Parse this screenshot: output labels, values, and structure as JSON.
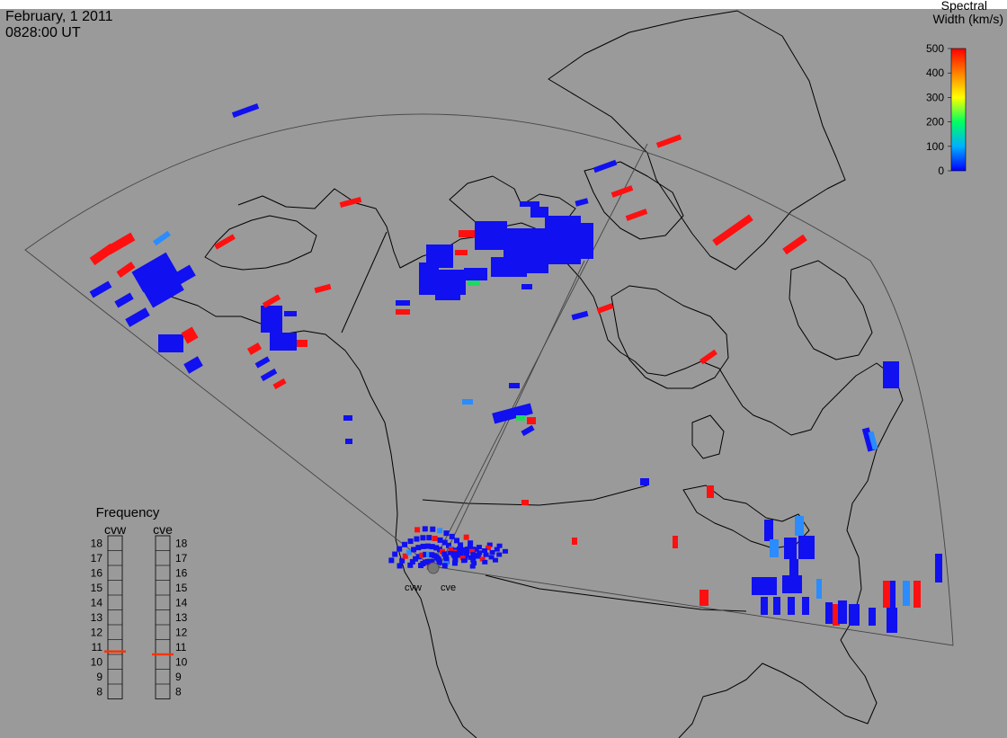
{
  "header": {
    "date": "February, 1 2011",
    "time": "0828:00 UT"
  },
  "colorbar": {
    "title_line1": "Spectral",
    "title_line2": "Width (km/s)",
    "ticks": [
      "500",
      "400",
      "300",
      "200",
      "100",
      "0"
    ],
    "scale_min": 0,
    "scale_max": 500,
    "gradient_colors": [
      "#0000ff",
      "#00b0ff",
      "#00ff60",
      "#ffff00",
      "#ff8000",
      "#ff0000"
    ]
  },
  "frequency_panel": {
    "title": "Frequency",
    "radars": [
      {
        "label": "cvw",
        "marker_value": 10.7
      },
      {
        "label": "cve",
        "marker_value": 10.5
      }
    ],
    "scale": [
      "18",
      "17",
      "16",
      "15",
      "14",
      "13",
      "12",
      "11",
      "10",
      "9",
      "8"
    ],
    "marker_color": "#ff3300"
  },
  "site_labels": [
    "cvw",
    "cve"
  ],
  "colors": {
    "background": "#9a9a9a",
    "low_width": "#1010f0",
    "mid_low_width": "#2a8cff",
    "mid_width": "#20d860",
    "high_width": "#ff1010"
  }
}
